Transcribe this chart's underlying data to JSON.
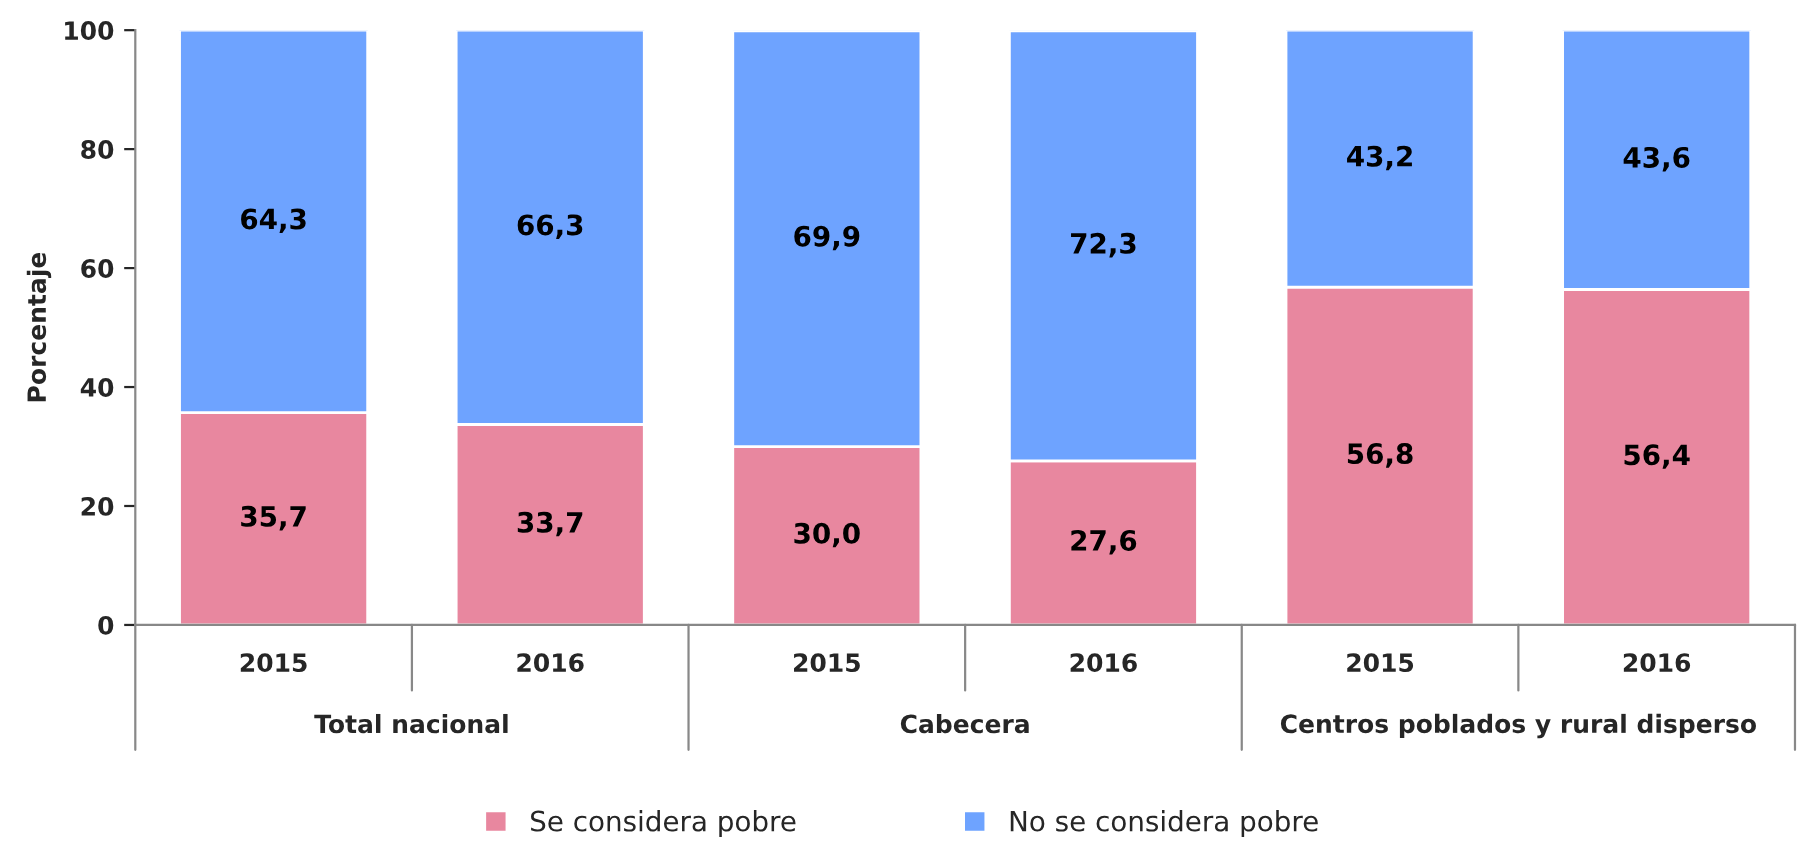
{
  "chart_data": {
    "type": "bar",
    "stacked": true,
    "ylabel": "Porcentaje",
    "categories": [
      "2015",
      "2016",
      "2015",
      "2016",
      "2015",
      "2016"
    ],
    "series": [
      {
        "name": "Se considera pobre",
        "color": "#e8879f",
        "values": [
          35.7,
          33.7,
          30.0,
          27.6,
          56.8,
          56.4
        ],
        "value_labels": [
          "35,7",
          "33,7",
          "30,0",
          "27,6",
          "56,8",
          "56,4"
        ]
      },
      {
        "name": "No se considera pobre",
        "color": "#6ea3ff",
        "values": [
          64.3,
          66.3,
          69.9,
          72.3,
          43.2,
          43.6
        ],
        "value_labels": [
          "64,3",
          "66,3",
          "69,9",
          "72,3",
          "43,2",
          "43,6"
        ]
      }
    ],
    "annotations": [
      "Total nacional",
      "Cabecera",
      "Centros poblados y rural disperso"
    ],
    "ylim": [
      0,
      100
    ],
    "yticks": [
      0,
      20,
      40,
      60,
      80,
      100
    ],
    "grid": false,
    "legend": "bottom"
  }
}
